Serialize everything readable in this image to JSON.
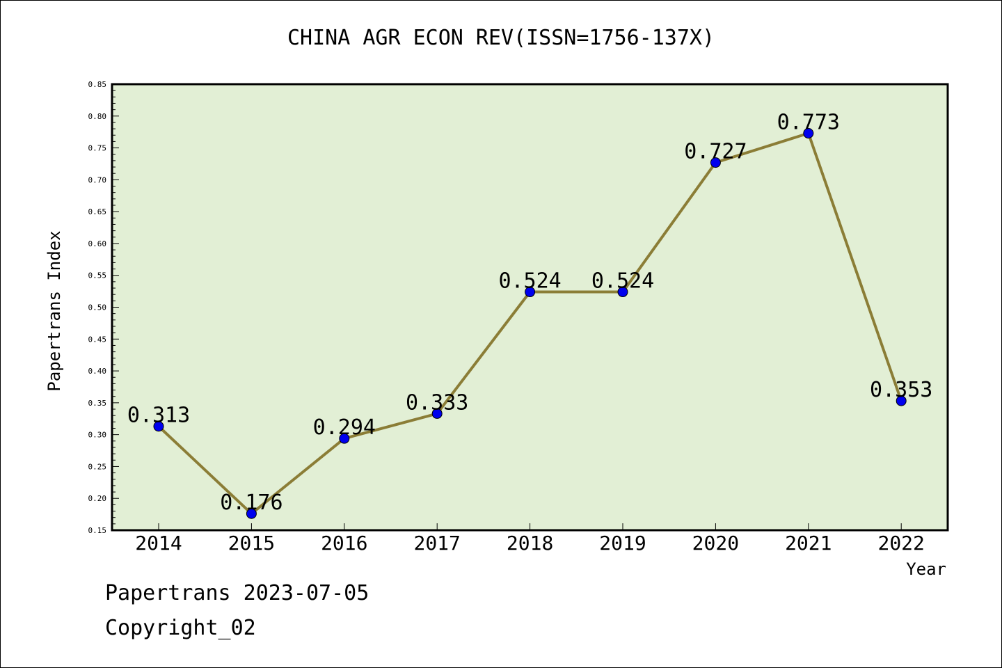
{
  "title": "CHINA AGR ECON REV(ISSN=1756-137X)",
  "footer": {
    "line1": "Papertrans 2023-07-05",
    "line2": "Copyright_02"
  },
  "colors": {
    "plot_background": "#e2efd5",
    "line": "#8b7d36",
    "marker": "#0000ee",
    "marker_edge": "#000000"
  },
  "chart_data": {
    "type": "line",
    "title": "CHINA AGR ECON REV(ISSN=1756-137X)",
    "xlabel": "Year",
    "ylabel": "Papertrans Index",
    "categories": [
      "2014",
      "2015",
      "2016",
      "2017",
      "2018",
      "2019",
      "2020",
      "2021",
      "2022"
    ],
    "values": [
      0.313,
      0.176,
      0.294,
      0.333,
      0.524,
      0.524,
      0.727,
      0.773,
      0.353
    ],
    "data_labels": [
      "0.313",
      "0.176",
      "0.294",
      "0.333",
      "0.524",
      "0.524",
      "0.727",
      "0.773",
      "0.353"
    ],
    "ylim": [
      0.15,
      0.85
    ],
    "yticks": [
      "0.15",
      "0.20",
      "0.25",
      "0.30",
      "0.35",
      "0.40",
      "0.45",
      "0.50",
      "0.55",
      "0.60",
      "0.65",
      "0.70",
      "0.75",
      "0.80",
      "0.85"
    ],
    "grid": false,
    "legend": "none"
  }
}
